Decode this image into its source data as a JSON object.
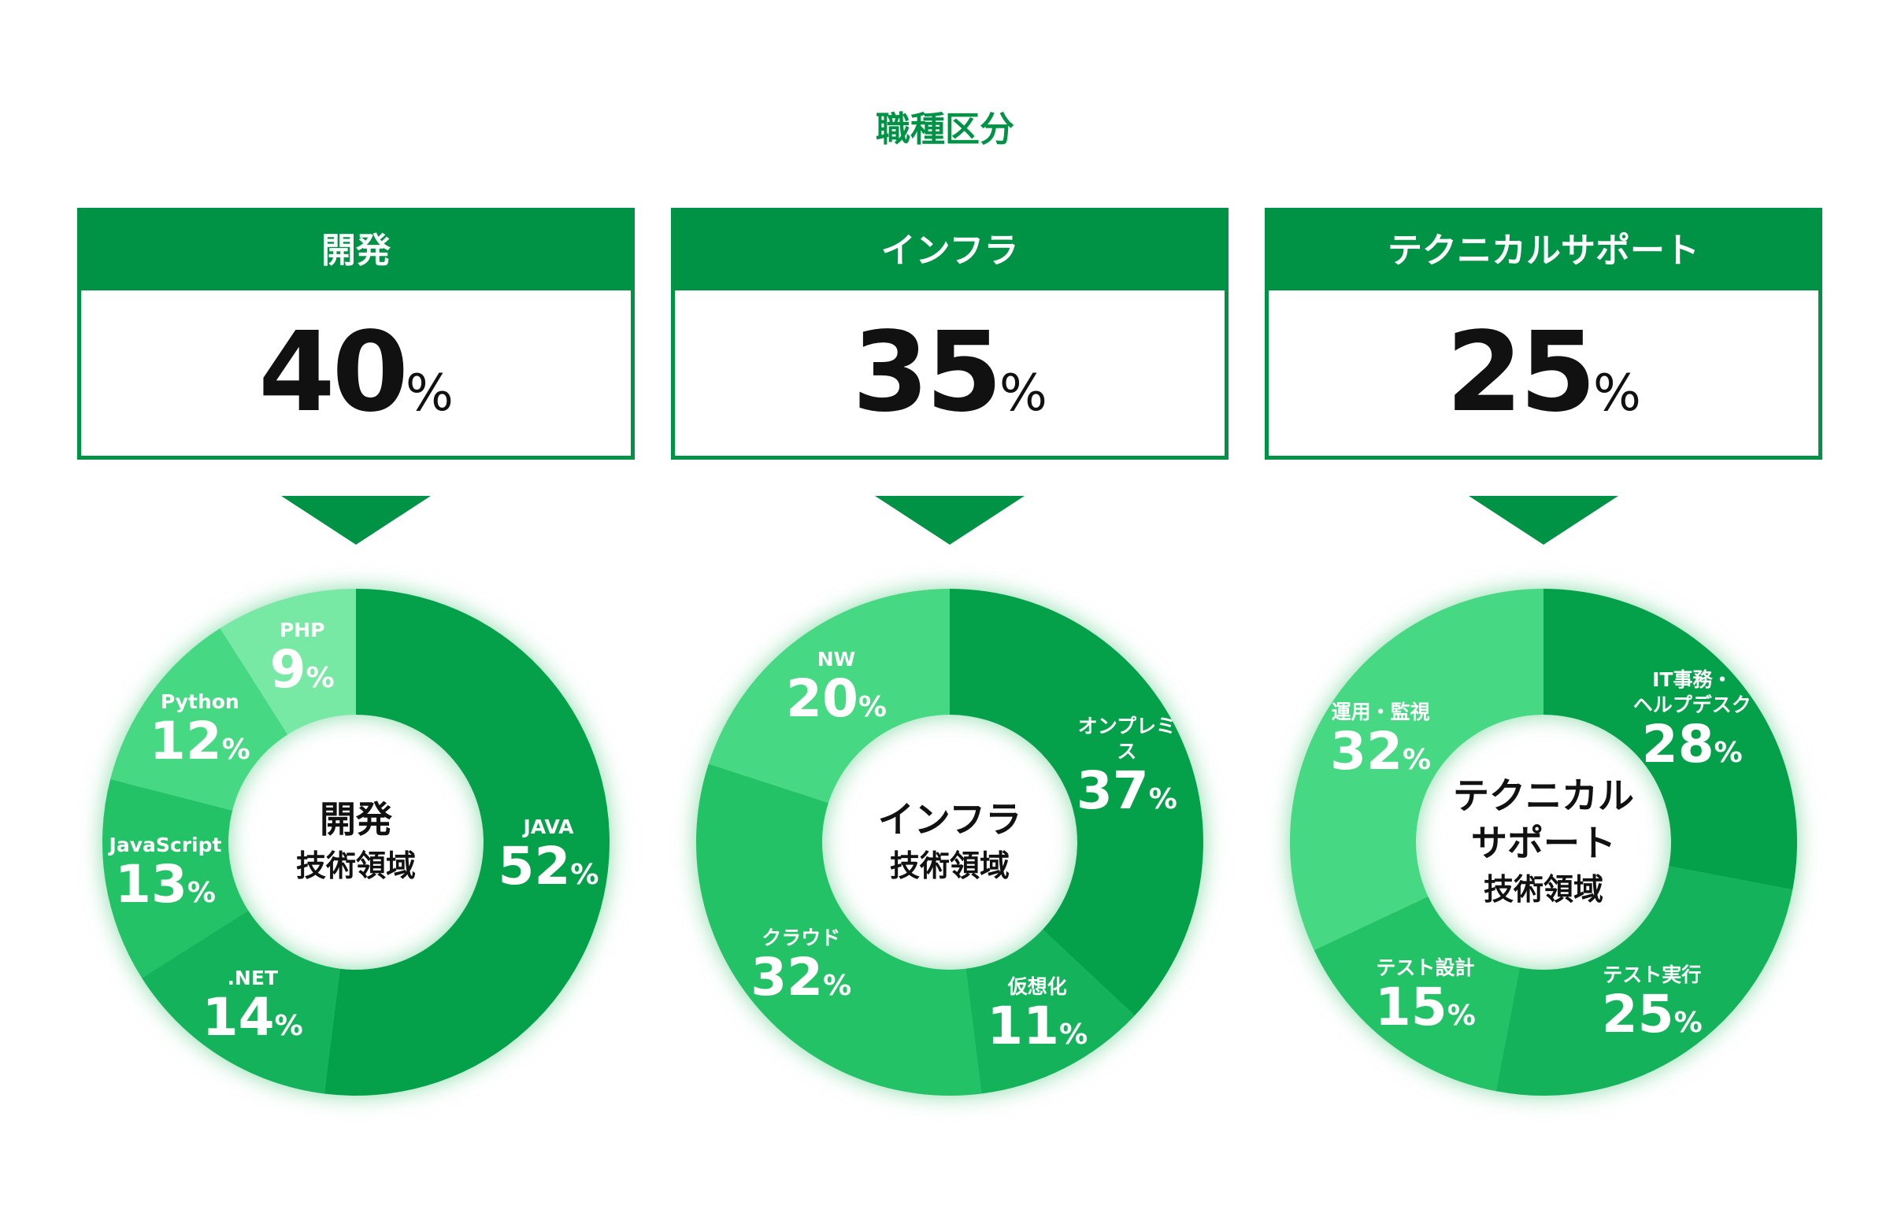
{
  "title": "職種区分",
  "categories": [
    {
      "label": "開発",
      "value": "40",
      "unit": "%"
    },
    {
      "label": "インフラ",
      "value": "35",
      "unit": "%"
    },
    {
      "label": "テクニカルサポート",
      "value": "25",
      "unit": "%"
    }
  ],
  "colors": {
    "brand": "#009245",
    "shades": [
      "#05a14a",
      "#14b35b",
      "#24c267",
      "#46d883",
      "#78e8a5"
    ]
  },
  "chart_data": [
    {
      "type": "pie",
      "title": "開発 技術領域",
      "center_lines": [
        "開発",
        "技術領域"
      ],
      "unit": "%",
      "slices": [
        {
          "label": "JAVA",
          "value": 52
        },
        {
          "label": ".NET",
          "value": 14
        },
        {
          "label": "JavaScript",
          "value": 13
        },
        {
          "label": "Python",
          "value": 12
        },
        {
          "label": "PHP",
          "value": 9
        }
      ]
    },
    {
      "type": "pie",
      "title": "インフラ 技術領域",
      "center_lines": [
        "インフラ",
        "技術領域"
      ],
      "unit": "%",
      "slices": [
        {
          "label": "オンプレミス",
          "value": 37
        },
        {
          "label": "仮想化",
          "value": 11
        },
        {
          "label": "クラウド",
          "value": 32
        },
        {
          "label": "NW",
          "value": 20
        }
      ]
    },
    {
      "type": "pie",
      "title": "テクニカルサポート 技術領域",
      "center_lines": [
        "テクニカル",
        "サポート",
        "技術領域"
      ],
      "unit": "%",
      "slices": [
        {
          "label": "IT事務・\nヘルプデスク",
          "value": 28
        },
        {
          "label": "テスト実行",
          "value": 25
        },
        {
          "label": "テスト設計",
          "value": 15
        },
        {
          "label": "運用・監視",
          "value": 32
        }
      ]
    }
  ]
}
